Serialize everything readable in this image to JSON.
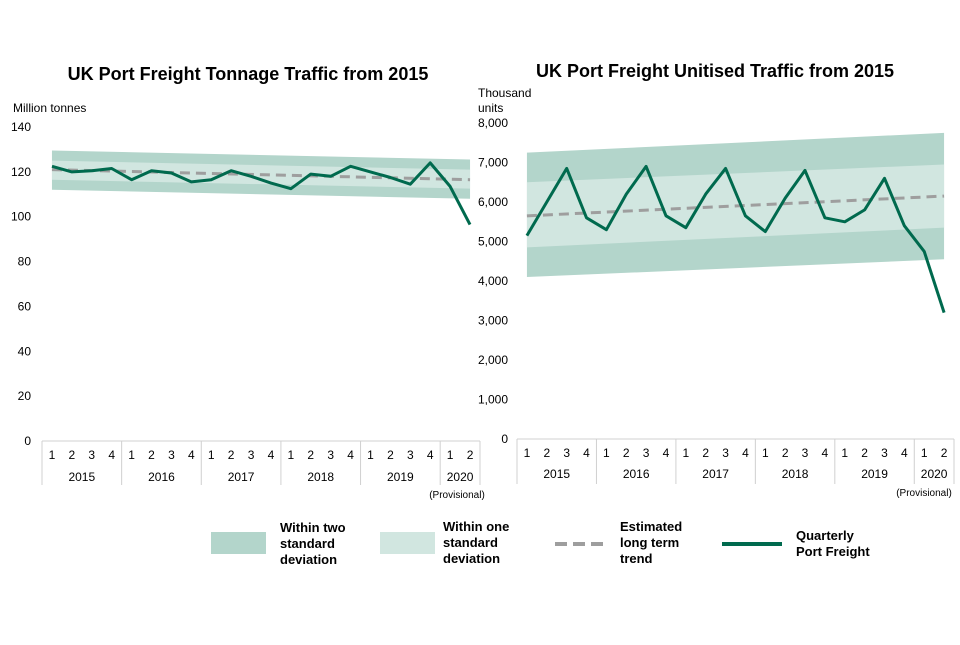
{
  "colors": {
    "band_outer": "#b3d5cb",
    "band_inner": "#d1e6e0",
    "trend": "#9e9e9e",
    "freight": "#006a4e",
    "axis": "#d0d0d0"
  },
  "chart_data": [
    {
      "type": "line",
      "title": "UK Port Freight Tonnage Traffic from 2015",
      "ylabel": "Million tonnes",
      "ylim": [
        0,
        140
      ],
      "yticks": [
        "0",
        "20",
        "40",
        "60",
        "80",
        "100",
        "120",
        "140"
      ],
      "ytick_values": [
        0,
        20,
        40,
        60,
        80,
        100,
        120,
        140
      ],
      "quarter_labels": [
        "1",
        "2",
        "3",
        "4",
        "1",
        "2",
        "3",
        "4",
        "1",
        "2",
        "3",
        "4",
        "1",
        "2",
        "3",
        "4",
        "1",
        "2",
        "3",
        "4",
        "1",
        "2"
      ],
      "year_labels": [
        "2015",
        "2016",
        "2017",
        "2018",
        "2019",
        "2020"
      ],
      "provisional_label": "(Provisional)",
      "series": [
        {
          "name": "Quarterly Port Freight",
          "values": [
            122.5,
            120,
            120.5,
            121.5,
            116.5,
            120.5,
            119.5,
            115.5,
            116.5,
            120.5,
            118,
            115,
            112.5,
            119,
            118,
            122.5,
            120,
            117.5,
            114.5,
            124,
            113.5,
            96.5
          ]
        },
        {
          "name": "Estimated long term trend",
          "start": 121,
          "end": 116.5
        },
        {
          "name": "Within one standard deviation",
          "upper_start": 125,
          "upper_end": 121,
          "lower_start": 116.5,
          "lower_end": 112.5
        },
        {
          "name": "Within two standard deviation",
          "upper_start": 129.5,
          "upper_end": 125.5,
          "lower_start": 112,
          "lower_end": 108
        }
      ]
    },
    {
      "type": "line",
      "title": "UK Port Freight Unitised Traffic from 2015",
      "ylabel_line1": "Thousand",
      "ylabel_line2": "units",
      "ylim": [
        0,
        8000
      ],
      "yticks": [
        "0",
        "1,000",
        "2,000",
        "3,000",
        "4,000",
        "5,000",
        "6,000",
        "7,000",
        "8,000"
      ],
      "ytick_values": [
        0,
        1000,
        2000,
        3000,
        4000,
        5000,
        6000,
        7000,
        8000
      ],
      "quarter_labels": [
        "1",
        "2",
        "3",
        "4",
        "1",
        "2",
        "3",
        "4",
        "1",
        "2",
        "3",
        "4",
        "1",
        "2",
        "3",
        "4",
        "1",
        "2",
        "3",
        "4",
        "1",
        "2"
      ],
      "year_labels": [
        "2015",
        "2016",
        "2017",
        "2018",
        "2019",
        "2020"
      ],
      "provisional_label": "(Provisional)",
      "series": [
        {
          "name": "Quarterly Port Freight",
          "values": [
            5150,
            6000,
            6850,
            5600,
            5300,
            6200,
            6900,
            5650,
            5350,
            6200,
            6850,
            5650,
            5250,
            6100,
            6800,
            5600,
            5500,
            5800,
            6600,
            5400,
            4750,
            3200
          ]
        },
        {
          "name": "Estimated long term trend",
          "start": 5650,
          "end": 6150
        },
        {
          "name": "Within one standard deviation",
          "upper_start": 6500,
          "upper_end": 6950,
          "lower_start": 4850,
          "lower_end": 5350
        },
        {
          "name": "Within two standard deviation",
          "upper_start": 7250,
          "upper_end": 7750,
          "lower_start": 4100,
          "lower_end": 4550
        }
      ]
    }
  ],
  "legend": [
    {
      "key": "two_sd",
      "label_lines": [
        "Within two",
        "standard",
        "deviation"
      ]
    },
    {
      "key": "one_sd",
      "label_lines": [
        "Within one",
        "standard",
        "deviation"
      ]
    },
    {
      "key": "trend",
      "label_lines": [
        "Estimated",
        "long term",
        "trend"
      ]
    },
    {
      "key": "freight",
      "label_lines": [
        "Quarterly",
        "Port Freight"
      ]
    }
  ]
}
